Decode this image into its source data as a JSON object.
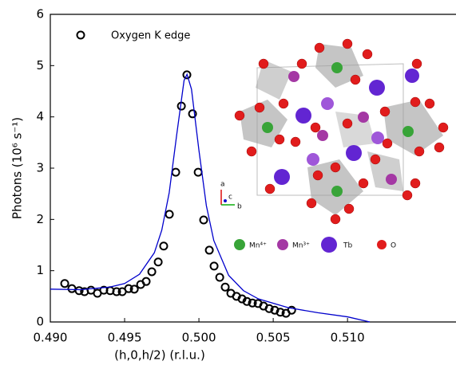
{
  "chart_data": {
    "type": "scatter",
    "xlabel": "(h,0,h/2) (r.l.u.)",
    "ylabel": "Photons (10⁶ s⁻¹)",
    "xlim": [
      0.49,
      0.5173
    ],
    "ylim": [
      0,
      6
    ],
    "xticks": [
      {
        "value": 0.49,
        "label": "0.490"
      },
      {
        "value": 0.495,
        "label": "0.495"
      },
      {
        "value": 0.5,
        "label": "0.500"
      },
      {
        "value": 0.505,
        "label": "0.505"
      },
      {
        "value": 0.51,
        "label": "0.510"
      }
    ],
    "yticks": [
      0,
      1,
      2,
      3,
      4,
      5,
      6
    ],
    "legend": "upper left",
    "series": [
      {
        "name": "Oxygen K edge",
        "color": "#000000",
        "marker": "circle",
        "x": [
          0.49097,
          0.49145,
          0.49194,
          0.4923,
          0.49274,
          0.49317,
          0.4936,
          0.49403,
          0.49446,
          0.49484,
          0.49527,
          0.49565,
          0.49608,
          0.49645,
          0.49683,
          0.49726,
          0.49763,
          0.49801,
          0.49844,
          0.49882,
          0.49919,
          0.49957,
          0.49995,
          0.50032,
          0.5007,
          0.50102,
          0.5014,
          0.50177,
          0.50215,
          0.50253,
          0.5029,
          0.50323,
          0.5036,
          0.50398,
          0.50435,
          0.50473,
          0.5051,
          0.50548,
          0.50586,
          0.50624
        ],
        "values": [
          0.75,
          0.65,
          0.61,
          0.59,
          0.62,
          0.56,
          0.62,
          0.61,
          0.59,
          0.59,
          0.65,
          0.64,
          0.73,
          0.79,
          0.98,
          1.17,
          1.48,
          2.1,
          2.92,
          4.21,
          4.82,
          4.06,
          2.92,
          1.99,
          1.4,
          1.09,
          0.87,
          0.68,
          0.56,
          0.5,
          0.45,
          0.4,
          0.37,
          0.36,
          0.31,
          0.26,
          0.23,
          0.19,
          0.17,
          0.23
        ]
      },
      {
        "color": "#0000cc",
        "marker": "line",
        "x": [
          0.49,
          0.492,
          0.494,
          0.495,
          0.496,
          0.497,
          0.4975,
          0.498,
          0.4985,
          0.499,
          0.4992,
          0.4995,
          0.5,
          0.5005,
          0.501,
          0.502,
          0.503,
          0.504,
          0.506,
          0.508,
          0.51,
          0.5115
        ],
        "values": [
          0.64,
          0.63,
          0.68,
          0.75,
          0.93,
          1.35,
          1.79,
          2.52,
          3.64,
          4.71,
          4.83,
          4.54,
          3.35,
          2.27,
          1.59,
          0.91,
          0.61,
          0.45,
          0.28,
          0.18,
          0.1,
          0.0
        ]
      }
    ]
  },
  "inset": {
    "axes": [
      "a",
      "c",
      "b"
    ],
    "legend": [
      "Mn⁴⁺",
      "Mn³⁺",
      "Tb",
      "O"
    ]
  }
}
